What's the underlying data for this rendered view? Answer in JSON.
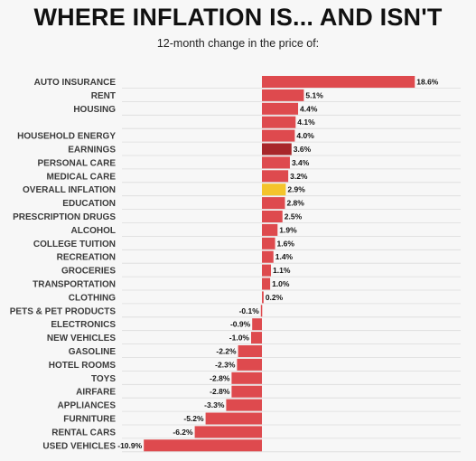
{
  "title": "WHERE INFLATION IS... AND ISN'T",
  "subtitle": "12-month change in the price of:",
  "colors": {
    "default": "#de4a4e",
    "earnings": "#a8262a",
    "overall": "#f4c42c"
  },
  "chart_data": {
    "type": "bar",
    "orientation": "horizontal",
    "categories": [
      "AUTO INSURANCE",
      "RENT",
      "HOUSING",
      "",
      "HOUSEHOLD ENERGY",
      "EARNINGS",
      "PERSONAL CARE",
      "MEDICAL CARE",
      "OVERALL INFLATION",
      "EDUCATION",
      "PRESCRIPTION DRUGS",
      "ALCOHOL",
      "COLLEGE TUITION",
      "RECREATION",
      "GROCERIES",
      "TRANSPORTATION",
      "CLOTHING",
      "PETS & PET PRODUCTS",
      "ELECTRONICS",
      "NEW VEHICLES",
      "GASOLINE",
      "HOTEL ROOMS",
      "TOYS",
      "AIRFARE",
      "APPLIANCES",
      "FURNITURE",
      "RENTAL CARS",
      "USED VEHICLES"
    ],
    "values": [
      18.6,
      5.1,
      4.4,
      4.1,
      4.0,
      3.6,
      3.4,
      3.2,
      2.9,
      2.8,
      2.5,
      1.9,
      1.6,
      1.4,
      1.1,
      1.0,
      0.2,
      -0.1,
      -0.9,
      -1.0,
      -2.2,
      -2.3,
      -2.8,
      -2.8,
      -3.3,
      -5.2,
      -6.2,
      -10.9
    ],
    "value_labels": [
      "18.6%",
      "5.1%",
      "4.4%",
      "4.1%",
      "4.0%",
      "3.6%",
      "3.4%",
      "3.2%",
      "2.9%",
      "2.8%",
      "2.5%",
      "1.9%",
      "1.6%",
      "1.4%",
      "1.1%",
      "1.0%",
      "0.2%",
      "-0.1%",
      "-0.9%",
      "-1.0%",
      "-2.2%",
      "-2.3%",
      "-2.8%",
      "-2.8%",
      "-3.3%",
      "-5.2%",
      "-6.2%",
      "-10.9%"
    ],
    "highlight": {
      "EARNINGS": "earnings",
      "OVERALL INFLATION": "overall"
    },
    "xlim": [
      -10.9,
      18.6
    ],
    "grid": true,
    "legend": "none"
  }
}
